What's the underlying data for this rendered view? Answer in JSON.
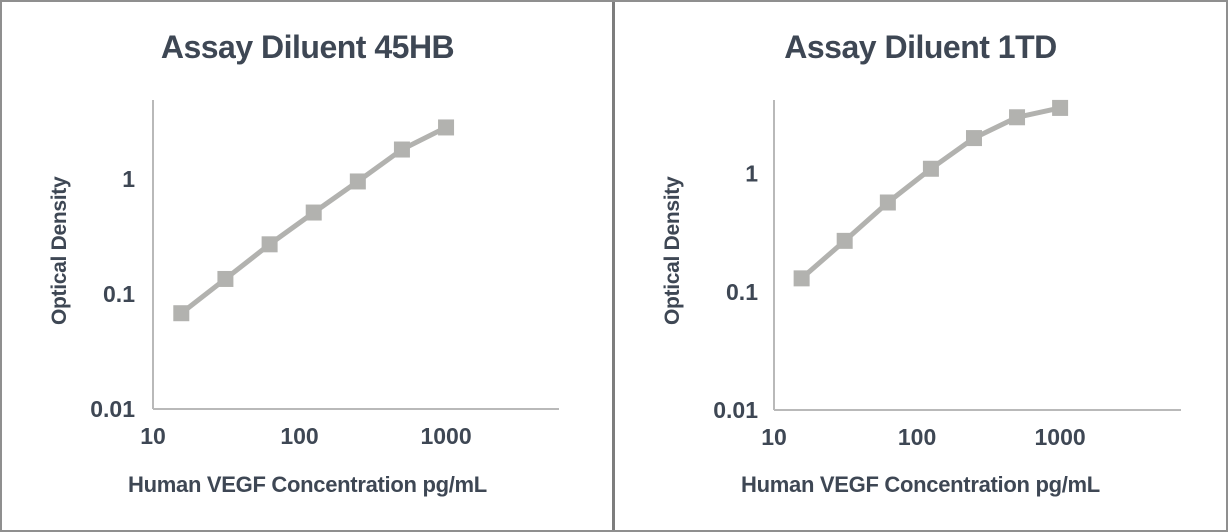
{
  "figure": {
    "border_color": "#8f8f8f",
    "divider_color": "#7d7d7d",
    "background": "#ffffff"
  },
  "colors": {
    "text": "#3e4754",
    "axis_line": "#b9b9b9",
    "curve": "#b2b2af"
  },
  "chart_data": [
    {
      "type": "line",
      "title": "Assay Diluent 45HB",
      "xlabel": "Human VEGF Concentration pg/mL",
      "ylabel": "Optical Density",
      "x_scale": "log",
      "y_scale": "log",
      "xlim": [
        10,
        5900
      ],
      "ylim": [
        0.01,
        4.85
      ],
      "x_tick_values": [
        10,
        100,
        1000
      ],
      "x_tick_labels": [
        "10",
        "100",
        "1000"
      ],
      "y_tick_values": [
        1,
        0.1,
        0.01
      ],
      "y_tick_labels": [
        "1",
        "0.1",
        "0.01"
      ],
      "grid": false,
      "legend": "none",
      "marker": "square",
      "x": [
        15.6,
        31.2,
        62.5,
        125,
        250,
        500,
        1000
      ],
      "y": [
        0.068,
        0.135,
        0.27,
        0.51,
        0.95,
        1.8,
        2.8
      ]
    },
    {
      "type": "line",
      "title": "Assay Diluent 1TD",
      "xlabel": "Human VEGF Concentration pg/mL",
      "ylabel": "Optical Density",
      "x_scale": "log",
      "y_scale": "log",
      "xlim": [
        10,
        7000
      ],
      "ylim": [
        0.01,
        4.2
      ],
      "x_tick_values": [
        10,
        100,
        1000
      ],
      "x_tick_labels": [
        "10",
        "100",
        "1000"
      ],
      "y_tick_values": [
        1,
        0.1,
        0.01
      ],
      "y_tick_labels": [
        "1",
        "0.1",
        "0.01"
      ],
      "grid": false,
      "legend": "none",
      "marker": "square",
      "x": [
        15.6,
        31.2,
        62.5,
        125,
        250,
        500,
        1000
      ],
      "y": [
        0.13,
        0.27,
        0.57,
        1.1,
        2.0,
        3.0,
        3.6
      ]
    }
  ]
}
